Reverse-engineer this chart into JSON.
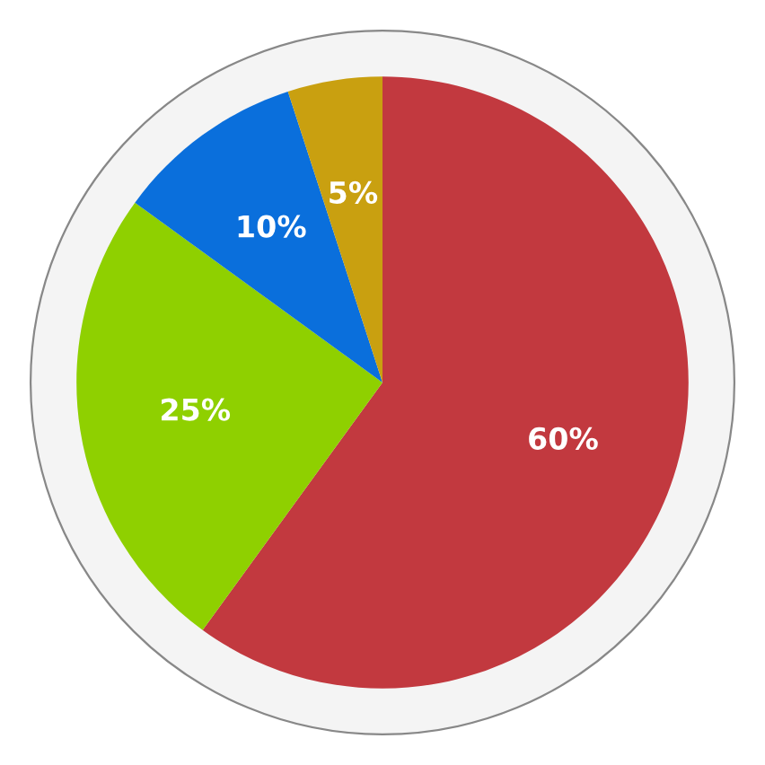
{
  "chart_data": {
    "type": "pie",
    "categories": [
      null,
      null,
      null,
      null
    ],
    "values": [
      60,
      25,
      10,
      5
    ],
    "colors": [
      "#c2393f",
      "#8fd000",
      "#0a6fdc",
      "#c9a010"
    ],
    "value_labels": [
      "60%",
      "25%",
      "10%",
      "5%"
    ]
  }
}
